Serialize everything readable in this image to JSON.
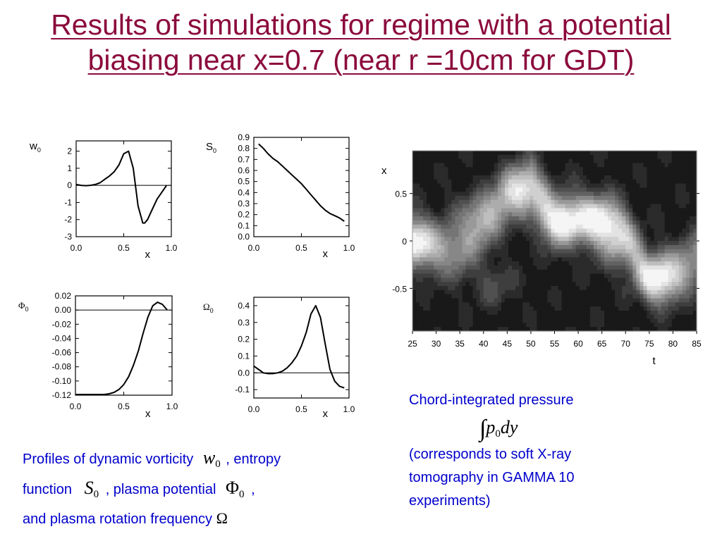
{
  "title": {
    "line1": "Results of simulations for regime with a potential",
    "line2": "biasing  near x=0.7 (near r =10cm for GDT)"
  },
  "colors": {
    "title": "#8b0a3c",
    "caption": "#0000cc",
    "axes": "#000000"
  },
  "chart_data": [
    {
      "type": "line",
      "ylabel": "w",
      "ylabel_sub": "0",
      "xlabel": "x",
      "xlim": [
        0,
        1
      ],
      "ylim": [
        -3,
        2.6
      ],
      "xticks": [
        0.0,
        0.5,
        1.0
      ],
      "xtick_labels": [
        "0.0",
        "0.5",
        "1.0"
      ],
      "yticks": [
        -3,
        -2,
        -1,
        0,
        1,
        2
      ],
      "ytick_labels": [
        "-3",
        "-2",
        "-1",
        "0",
        "1",
        "2"
      ],
      "zero_line": true,
      "x": [
        0.0,
        0.05,
        0.1,
        0.15,
        0.2,
        0.25,
        0.3,
        0.35,
        0.4,
        0.45,
        0.5,
        0.55,
        0.6,
        0.65,
        0.7,
        0.72,
        0.75,
        0.8,
        0.85,
        0.9,
        0.95
      ],
      "y": [
        0.05,
        0.0,
        -0.02,
        0.0,
        0.05,
        0.15,
        0.35,
        0.55,
        0.8,
        1.2,
        1.85,
        2.0,
        1.0,
        -1.2,
        -2.2,
        -2.2,
        -2.0,
        -1.4,
        -0.8,
        -0.4,
        0.0
      ]
    },
    {
      "type": "line",
      "ylabel": "S",
      "ylabel_sub": "0",
      "xlabel": "x",
      "xlim": [
        0,
        1
      ],
      "ylim": [
        0,
        0.9
      ],
      "xticks": [
        0.0,
        0.5,
        1.0
      ],
      "xtick_labels": [
        "0.0",
        "0.5",
        "1.0"
      ],
      "yticks": [
        0.0,
        0.1,
        0.2,
        0.3,
        0.4,
        0.5,
        0.6,
        0.7,
        0.8,
        0.9
      ],
      "ytick_labels": [
        "0.0",
        "0.1",
        "0.2",
        "0.3",
        "0.4",
        "0.5",
        "0.6",
        "0.7",
        "0.8",
        "0.9"
      ],
      "zero_line": false,
      "x": [
        0.05,
        0.1,
        0.15,
        0.2,
        0.25,
        0.3,
        0.35,
        0.4,
        0.45,
        0.5,
        0.55,
        0.6,
        0.65,
        0.7,
        0.75,
        0.8,
        0.85,
        0.9,
        0.95
      ],
      "y": [
        0.84,
        0.8,
        0.75,
        0.71,
        0.68,
        0.64,
        0.6,
        0.56,
        0.52,
        0.48,
        0.43,
        0.38,
        0.33,
        0.28,
        0.24,
        0.21,
        0.19,
        0.17,
        0.14
      ]
    },
    {
      "type": "line",
      "ylabel": "Φ",
      "ylabel_sub": "0",
      "xlabel": "x",
      "xlim": [
        0,
        1
      ],
      "ylim": [
        -0.12,
        0.02
      ],
      "xticks": [
        0.0,
        0.5,
        1.0
      ],
      "xtick_labels": [
        "0.0",
        "0.5",
        "1.0"
      ],
      "yticks": [
        -0.12,
        -0.1,
        -0.08,
        -0.06,
        -0.04,
        -0.02,
        0.0,
        0.02
      ],
      "ytick_labels": [
        "-0.12",
        "-0.10",
        "-0.08",
        "-0.06",
        "-0.04",
        "-0.02",
        "0.00",
        "0.02"
      ],
      "zero_line": true,
      "x": [
        0.0,
        0.1,
        0.2,
        0.3,
        0.35,
        0.4,
        0.45,
        0.5,
        0.55,
        0.6,
        0.65,
        0.7,
        0.75,
        0.8,
        0.85,
        0.9,
        0.95
      ],
      "y": [
        -0.119,
        -0.119,
        -0.119,
        -0.119,
        -0.118,
        -0.116,
        -0.112,
        -0.105,
        -0.094,
        -0.078,
        -0.058,
        -0.033,
        -0.01,
        0.006,
        0.011,
        0.008,
        0.0
      ]
    },
    {
      "type": "line",
      "ylabel": "Ω",
      "ylabel_sub": "0",
      "xlabel": "x",
      "xlim": [
        0,
        1
      ],
      "ylim": [
        -0.15,
        0.45
      ],
      "xticks": [
        0.0,
        0.5,
        1.0
      ],
      "xtick_labels": [
        "0.0",
        "0.5",
        "1.0"
      ],
      "yticks": [
        -0.1,
        0.0,
        0.1,
        0.2,
        0.3,
        0.4
      ],
      "ytick_labels": [
        "-0.1",
        "0.0",
        "0.1",
        "0.2",
        "0.3",
        "0.4"
      ],
      "zero_line": true,
      "x": [
        0.0,
        0.05,
        0.1,
        0.15,
        0.2,
        0.25,
        0.3,
        0.35,
        0.4,
        0.45,
        0.5,
        0.55,
        0.6,
        0.65,
        0.7,
        0.75,
        0.8,
        0.85,
        0.9,
        0.95
      ],
      "y": [
        0.04,
        0.02,
        0.0,
        -0.005,
        -0.005,
        0.0,
        0.01,
        0.03,
        0.06,
        0.1,
        0.16,
        0.24,
        0.35,
        0.4,
        0.33,
        0.17,
        0.02,
        -0.05,
        -0.08,
        -0.09
      ]
    },
    {
      "type": "heatmap",
      "colormap": "grayscale contour",
      "xlabel": "t",
      "ylabel": "x",
      "xlim": [
        25,
        85
      ],
      "ylim": [
        -0.95,
        0.95
      ],
      "xticks": [
        25,
        30,
        35,
        40,
        45,
        50,
        55,
        60,
        65,
        70,
        75,
        80,
        85
      ],
      "xtick_labels": [
        "25",
        "30",
        "35",
        "40",
        "45",
        "50",
        "55",
        "60",
        "65",
        "70",
        "75",
        "80",
        "85"
      ],
      "yticks": [
        -0.5,
        0,
        0.5
      ],
      "ytick_labels": [
        "-0.5",
        "0",
        "0.5"
      ],
      "bright_band_center": [
        [
          25,
          0.0
        ],
        [
          30,
          -0.1
        ],
        [
          35,
          -0.1
        ],
        [
          40,
          0.15
        ],
        [
          45,
          0.45
        ],
        [
          50,
          0.6
        ],
        [
          55,
          0.2
        ],
        [
          60,
          0.25
        ],
        [
          65,
          0.2
        ],
        [
          70,
          0.05
        ],
        [
          75,
          -0.4
        ],
        [
          80,
          -0.35
        ],
        [
          85,
          -0.2
        ]
      ],
      "bright_spots": [
        [
          25,
          0.0,
          1.0
        ],
        [
          38,
          0.3,
          0.55
        ],
        [
          48,
          0.55,
          0.8
        ],
        [
          56,
          0.2,
          1.0
        ],
        [
          65,
          0.22,
          0.95
        ],
        [
          77,
          -0.4,
          1.0
        ],
        [
          68,
          -0.1,
          0.5
        ],
        [
          42,
          -0.45,
          0.4
        ]
      ]
    }
  ],
  "caption_left": {
    "line1_a": "Profiles of dynamic vorticity",
    "line1_b": ", entropy",
    "line2_a": "function",
    "line2_b": ", plasma potential",
    "line2_c": ",",
    "line3": "and plasma rotation frequency",
    "sym_w": "w",
    "sym_S": "S",
    "sym_Phi": "Φ",
    "sym_Omega": "Ω",
    "sub0": "0"
  },
  "caption_right": {
    "line1": "Chord-integrated pressure",
    "formula_int": "∫",
    "formula_p": "p",
    "formula_sub": "0",
    "formula_dy": "dy",
    "line3": "(corresponds to soft X-ray",
    "line4": "tomography in GAMMA 10",
    "line5": "experiments)"
  }
}
